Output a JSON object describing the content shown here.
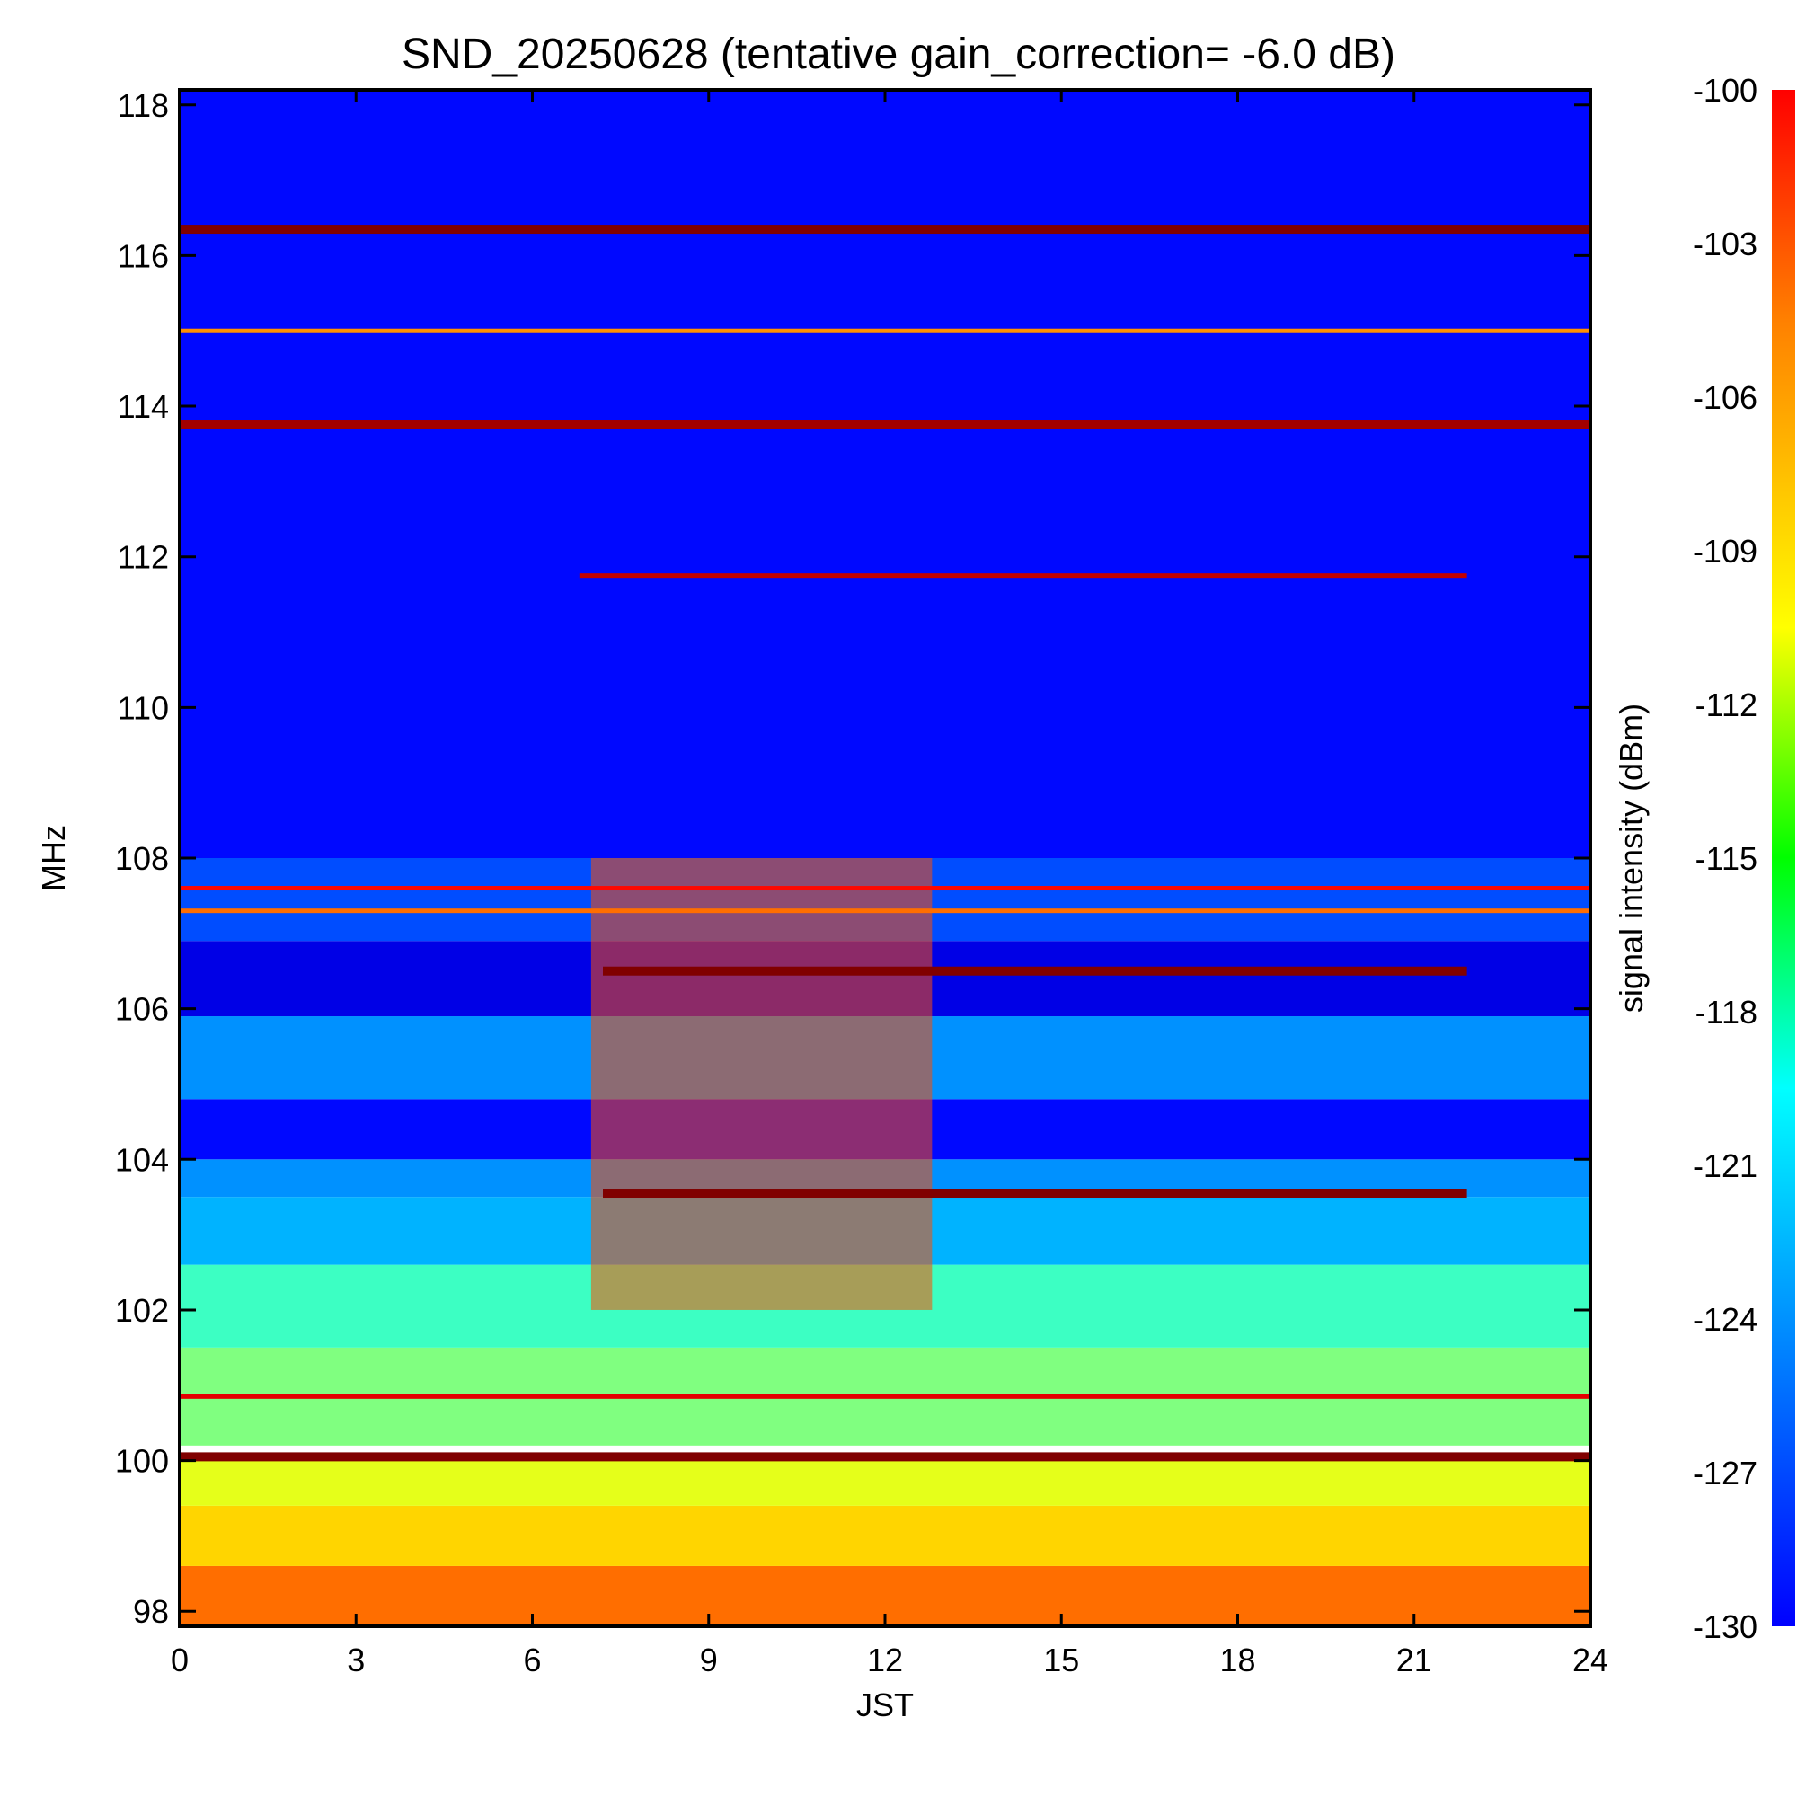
{
  "chart_data": {
    "type": "heatmap",
    "title": "SND_20250628 (tentative gain_correction= -6.0 dB)",
    "xlabel": "JST",
    "ylabel": "MHz",
    "xlim": [
      0,
      24
    ],
    "ylim": [
      97.8,
      118.2
    ],
    "x_ticks": [
      "0",
      "3",
      "6",
      "9",
      "12",
      "15",
      "18",
      "21",
      "24"
    ],
    "x_tick_values": [
      0,
      3,
      6,
      9,
      12,
      15,
      18,
      21,
      24
    ],
    "y_ticks": [
      "98",
      "100",
      "102",
      "104",
      "106",
      "108",
      "110",
      "112",
      "114",
      "116",
      "118"
    ],
    "y_tick_values": [
      98,
      100,
      102,
      104,
      106,
      108,
      110,
      112,
      114,
      116,
      118
    ],
    "colorbar": {
      "label": "signal intensity (dBm)",
      "range": [
        -130,
        -100
      ],
      "ticks": [
        "-100",
        "-103",
        "-106",
        "-109",
        "-112",
        "-115",
        "-118",
        "-121",
        "-124",
        "-127",
        "-130"
      ],
      "tick_values": [
        -100,
        -103,
        -106,
        -109,
        -112,
        -115,
        -118,
        -121,
        -124,
        -127,
        -130
      ],
      "colormap": "jet"
    },
    "background_bands": [
      {
        "f_from": 97.8,
        "f_to": 98.6,
        "level": -107
      },
      {
        "f_from": 98.6,
        "f_to": 99.4,
        "level": -110
      },
      {
        "f_from": 99.4,
        "f_to": 100.0,
        "level": -112
      },
      {
        "f_from": 100.2,
        "f_to": 101.5,
        "level": -115
      },
      {
        "f_from": 101.5,
        "f_to": 102.6,
        "level": -117
      },
      {
        "f_from": 102.6,
        "f_to": 103.5,
        "level": -121
      },
      {
        "f_from": 103.5,
        "f_to": 104.0,
        "level": -122
      },
      {
        "f_from": 104.0,
        "f_to": 104.8,
        "level": -126
      },
      {
        "f_from": 104.8,
        "f_to": 105.9,
        "level": -122
      },
      {
        "f_from": 105.9,
        "f_to": 106.9,
        "level": -127
      },
      {
        "f_from": 106.9,
        "f_to": 108.0,
        "level": -124
      },
      {
        "f_from": 108.0,
        "f_to": 118.2,
        "level": -126
      }
    ],
    "persistent_signals": [
      {
        "freq_mhz": 116.35,
        "t_start": 0,
        "t_end": 24,
        "level": -100
      },
      {
        "freq_mhz": 115.0,
        "t_start": 0,
        "t_end": 24,
        "level": -108
      },
      {
        "freq_mhz": 113.75,
        "t_start": 0,
        "t_end": 24,
        "level": -101
      },
      {
        "freq_mhz": 111.75,
        "t_start": 6.8,
        "t_end": 21.9,
        "level": -102
      },
      {
        "freq_mhz": 107.6,
        "t_start": 0,
        "t_end": 24,
        "level": -104
      },
      {
        "freq_mhz": 107.3,
        "t_start": 0,
        "t_end": 24,
        "level": -107
      },
      {
        "freq_mhz": 106.5,
        "t_start": 7.2,
        "t_end": 21.9,
        "level": -100
      },
      {
        "freq_mhz": 103.55,
        "t_start": 7.2,
        "t_end": 21.9,
        "level": -100
      },
      {
        "freq_mhz": 100.85,
        "t_start": 0,
        "t_end": 24,
        "level": -103
      },
      {
        "freq_mhz": 100.05,
        "t_start": 0,
        "t_end": 24,
        "level": -100
      }
    ],
    "daytime_enhancement": {
      "t_start": 7.0,
      "t_end": 12.8,
      "f_from": 102.0,
      "f_to": 108.0,
      "level": -106
    }
  }
}
